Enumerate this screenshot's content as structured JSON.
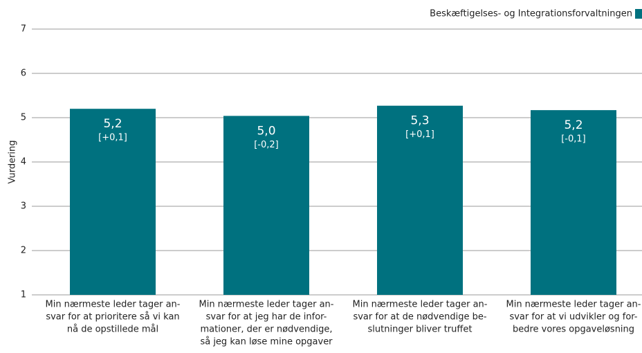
{
  "chart_data": {
    "type": "bar",
    "legend_label": "Beskæftigelses- og Integrationsforvaltningen",
    "legend_position": "top-right",
    "y_label": "Vurdering",
    "categories": [
      [
        "Min nærmeste leder tager an-",
        "svar for at prioritere så vi kan",
        "nå de opstillede mål"
      ],
      [
        "Min nærmeste leder tager an-",
        "svar for at jeg har de infor-",
        "mationer, der er nødvendige,",
        "så jeg kan løse mine opgaver"
      ],
      [
        "Min nærmeste leder tager an-",
        "svar for at de nødvendige be-",
        "slutninger bliver truffet"
      ],
      [
        "Min nærmeste leder tager an-",
        "svar for at vi udvikler og for-",
        "bedre vores opgaveløsning"
      ]
    ],
    "values": [
      5.2,
      5.04,
      5.27,
      5.17
    ],
    "value_labels": [
      "5,2",
      "5,0",
      "5,3",
      "5,2"
    ],
    "change_labels": [
      "[+0,1]",
      "[-0,2]",
      "[+0,1]",
      "[-0,1]"
    ],
    "color": "#00717f",
    "ylim": [
      1,
      7
    ],
    "yticks": [
      1,
      2,
      3,
      4,
      5,
      6,
      7
    ],
    "grid": true
  }
}
